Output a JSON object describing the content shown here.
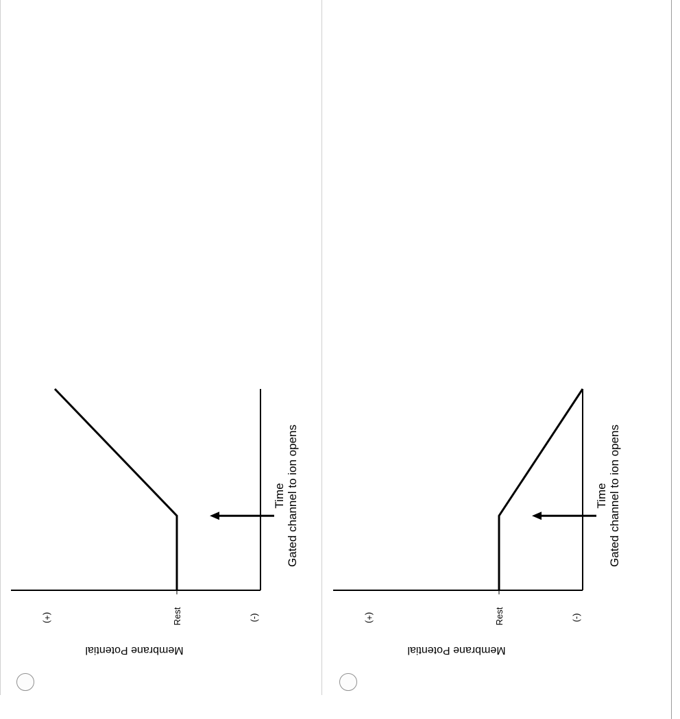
{
  "options": [
    {
      "radio_label": "",
      "chart_data": {
        "type": "line",
        "title": "",
        "xlabel": "Time",
        "ylabel": "Membrane Potential",
        "annotation": "Gated channel to ion opens",
        "y_tick_labels": [
          "(+)",
          "Rest",
          "(-)"
        ],
        "series": [
          {
            "x": [
              0,
              0.37,
              1.0
            ],
            "y": [
              0,
              0,
              0.65
            ]
          }
        ],
        "event_time": 0.37,
        "xlim": [
          0,
          1
        ],
        "ylim": [
          -0.35,
          1.0
        ],
        "grid": false,
        "rotation_deg": 90
      }
    },
    {
      "radio_label": "",
      "chart_data": {
        "type": "line",
        "title": "",
        "xlabel": "Time",
        "ylabel": "Membrane Potential",
        "annotation": "Gated channel to ion opens",
        "y_tick_labels": [
          "(+)",
          "Rest",
          "(-)"
        ],
        "series": [
          {
            "x": [
              0,
              0.37,
              1.0
            ],
            "y": [
              0,
              0,
              -0.35
            ]
          }
        ],
        "event_time": 0.37,
        "xlim": [
          0,
          1
        ],
        "ylim": [
          -0.35,
          1.0
        ],
        "grid": false,
        "rotation_deg": 90
      }
    }
  ]
}
